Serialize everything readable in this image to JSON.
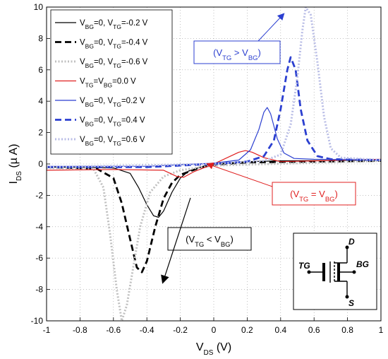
{
  "chart_data": {
    "type": "line",
    "xlim": [
      -1,
      1
    ],
    "ylim": [
      -10,
      10
    ],
    "x_ticks": [
      -1,
      -0.8,
      -0.6,
      -0.4,
      -0.2,
      0,
      0.2,
      0.4,
      0.6,
      0.8,
      1
    ],
    "x_tick_labels": [
      "-1",
      "-0.8",
      "-0.6",
      "-0.4",
      "-0.2",
      "0",
      "0.2",
      "0.4",
      "0.6",
      "0.8",
      "1"
    ],
    "y_ticks": [
      -10,
      -8,
      -6,
      -4,
      -2,
      0,
      2,
      4,
      6,
      8,
      10
    ],
    "y_tick_labels": [
      "-10",
      "-8",
      "-6",
      "-4",
      "-2",
      "0",
      "2",
      "4",
      "6",
      "8",
      "10"
    ],
    "xlabel": {
      "main": "V",
      "sub": "DS",
      "rest": " (V)"
    },
    "ylabel": {
      "main": "I",
      "sub": "DS",
      "rest": " (µ A)"
    },
    "grid": true,
    "legend_position": "top-left",
    "series": [
      {
        "name": {
          "parts": [
            [
              "V",
              ""
            ],
            [
              "BG",
              "sub"
            ],
            [
              "=0, V",
              ""
            ],
            [
              "TG",
              "sub"
            ],
            [
              "=-0.2 V",
              ""
            ]
          ]
        },
        "color": "#000000",
        "style": "solid",
        "width": 1.2,
        "points": [
          [
            -1,
            -0.2
          ],
          [
            -0.6,
            -0.25
          ],
          [
            -0.5,
            -0.6
          ],
          [
            -0.45,
            -1.5
          ],
          [
            -0.4,
            -2.6
          ],
          [
            -0.36,
            -3.3
          ],
          [
            -0.33,
            -3.4
          ],
          [
            -0.3,
            -3.0
          ],
          [
            -0.25,
            -1.8
          ],
          [
            -0.2,
            -0.9
          ],
          [
            -0.15,
            -0.45
          ],
          [
            -0.05,
            -0.1
          ],
          [
            0,
            0
          ],
          [
            0.2,
            0.15
          ],
          [
            0.4,
            0.2
          ],
          [
            1,
            0.25
          ]
        ]
      },
      {
        "name": {
          "parts": [
            [
              "V",
              ""
            ],
            [
              "BG",
              "sub"
            ],
            [
              "=0, V",
              ""
            ],
            [
              "TG",
              "sub"
            ],
            [
              "=-0.4 V",
              ""
            ]
          ]
        },
        "color": "#000000",
        "style": "dashed",
        "width": 2.8,
        "points": [
          [
            -1,
            -0.2
          ],
          [
            -0.7,
            -0.3
          ],
          [
            -0.6,
            -0.9
          ],
          [
            -0.55,
            -2.5
          ],
          [
            -0.5,
            -4.8
          ],
          [
            -0.46,
            -6.6
          ],
          [
            -0.43,
            -6.9
          ],
          [
            -0.4,
            -6.2
          ],
          [
            -0.35,
            -4.0
          ],
          [
            -0.3,
            -2.2
          ],
          [
            -0.25,
            -1.2
          ],
          [
            -0.2,
            -0.7
          ],
          [
            -0.1,
            -0.3
          ],
          [
            0,
            -0.05
          ],
          [
            0.2,
            0.1
          ],
          [
            1,
            0.2
          ]
        ]
      },
      {
        "name": {
          "parts": [
            [
              "V",
              ""
            ],
            [
              "BG",
              "sub"
            ],
            [
              "=0, V",
              ""
            ],
            [
              "TG",
              "sub"
            ],
            [
              "=-0.6 V",
              ""
            ]
          ]
        },
        "color": "#c0c0c0",
        "style": "dotted",
        "width": 3,
        "points": [
          [
            -1,
            -0.25
          ],
          [
            -0.72,
            -0.3
          ],
          [
            -0.66,
            -1.5
          ],
          [
            -0.62,
            -4.5
          ],
          [
            -0.58,
            -8.0
          ],
          [
            -0.55,
            -10
          ],
          [
            -0.52,
            -9.0
          ],
          [
            -0.48,
            -6.5
          ],
          [
            -0.44,
            -4.0
          ],
          [
            -0.38,
            -1.8
          ],
          [
            -0.3,
            -0.8
          ],
          [
            -0.2,
            -0.4
          ],
          [
            0,
            -0.1
          ],
          [
            1,
            0.2
          ]
        ]
      },
      {
        "name": {
          "parts": [
            [
              "V",
              ""
            ],
            [
              "TG",
              "sub"
            ],
            [
              "=V",
              ""
            ],
            [
              "BG",
              "sub"
            ],
            [
              "=0.0 V",
              ""
            ]
          ]
        },
        "color": "#e02020",
        "style": "solid",
        "width": 1.2,
        "points": [
          [
            -1,
            -0.4
          ],
          [
            -0.6,
            -0.35
          ],
          [
            -0.3,
            -0.4
          ],
          [
            -0.22,
            -0.8
          ],
          [
            -0.18,
            -0.85
          ],
          [
            -0.12,
            -0.5
          ],
          [
            0,
            0
          ],
          [
            0.1,
            0.5
          ],
          [
            0.15,
            0.75
          ],
          [
            0.19,
            0.85
          ],
          [
            0.23,
            0.75
          ],
          [
            0.3,
            0.4
          ],
          [
            0.4,
            0.15
          ],
          [
            0.6,
            0.2
          ],
          [
            1,
            0.3
          ]
        ]
      },
      {
        "name": {
          "parts": [
            [
              "V",
              ""
            ],
            [
              "BG",
              "sub"
            ],
            [
              "=0, V",
              ""
            ],
            [
              "TG",
              "sub"
            ],
            [
              "=0.2 V",
              ""
            ]
          ]
        },
        "color": "#2b3fd0",
        "style": "solid",
        "width": 1.2,
        "points": [
          [
            -1,
            -0.15
          ],
          [
            -0.4,
            -0.15
          ],
          [
            -0.2,
            -0.05
          ],
          [
            0,
            0.05
          ],
          [
            0.15,
            0.25
          ],
          [
            0.22,
            0.9
          ],
          [
            0.27,
            2.2
          ],
          [
            0.3,
            3.3
          ],
          [
            0.32,
            3.6
          ],
          [
            0.34,
            3.2
          ],
          [
            0.38,
            1.6
          ],
          [
            0.42,
            0.7
          ],
          [
            0.48,
            0.35
          ],
          [
            0.6,
            0.3
          ],
          [
            1,
            0.25
          ]
        ]
      },
      {
        "name": {
          "parts": [
            [
              "V",
              ""
            ],
            [
              "BG",
              "sub"
            ],
            [
              "=0, V",
              ""
            ],
            [
              "TG",
              "sub"
            ],
            [
              "=0.4 V",
              ""
            ]
          ]
        },
        "color": "#2b3fd0",
        "style": "dashed",
        "width": 2.8,
        "points": [
          [
            -1,
            -0.2
          ],
          [
            -0.4,
            -0.2
          ],
          [
            0,
            0
          ],
          [
            0.2,
            0.15
          ],
          [
            0.3,
            0.5
          ],
          [
            0.36,
            1.5
          ],
          [
            0.4,
            3.5
          ],
          [
            0.44,
            6.0
          ],
          [
            0.46,
            6.8
          ],
          [
            0.49,
            6.0
          ],
          [
            0.52,
            3.5
          ],
          [
            0.56,
            1.5
          ],
          [
            0.62,
            0.5
          ],
          [
            0.7,
            0.3
          ],
          [
            1,
            0.25
          ]
        ]
      },
      {
        "name": {
          "parts": [
            [
              "V",
              ""
            ],
            [
              "BG",
              "sub"
            ],
            [
              "=0, V",
              ""
            ],
            [
              "TG",
              "sub"
            ],
            [
              "=0.6 V",
              ""
            ]
          ]
        },
        "color": "#b9bde6",
        "style": "dotted",
        "width": 3,
        "points": [
          [
            -1,
            -0.2
          ],
          [
            0,
            0
          ],
          [
            0.3,
            0.2
          ],
          [
            0.4,
            0.6
          ],
          [
            0.46,
            2.5
          ],
          [
            0.5,
            5.5
          ],
          [
            0.53,
            8.5
          ],
          [
            0.55,
            10
          ],
          [
            0.58,
            9.5
          ],
          [
            0.62,
            6.5
          ],
          [
            0.66,
            3.0
          ],
          [
            0.7,
            1.0
          ],
          [
            0.76,
            0.4
          ],
          [
            1,
            0.25
          ]
        ]
      }
    ],
    "annotations": [
      {
        "parts": [
          [
            "(V",
            ""
          ],
          [
            "TG",
            "sub"
          ],
          [
            " > V",
            ""
          ],
          [
            "BG",
            "sub"
          ],
          [
            ")",
            ""
          ]
        ],
        "color": "#2b3fd0"
      },
      {
        "parts": [
          [
            "(V",
            ""
          ],
          [
            "TG",
            "sub"
          ],
          [
            " = V",
            ""
          ],
          [
            "BG",
            "sub"
          ],
          [
            ")",
            ""
          ]
        ],
        "color": "#e02020"
      },
      {
        "parts": [
          [
            "(V",
            ""
          ],
          [
            "TG",
            "sub"
          ],
          [
            " < V",
            ""
          ],
          [
            "BG",
            "sub"
          ],
          [
            ")",
            ""
          ]
        ],
        "color": "#000000"
      }
    ],
    "inset_labels": [
      "D",
      "TG",
      "BG",
      "S"
    ]
  }
}
